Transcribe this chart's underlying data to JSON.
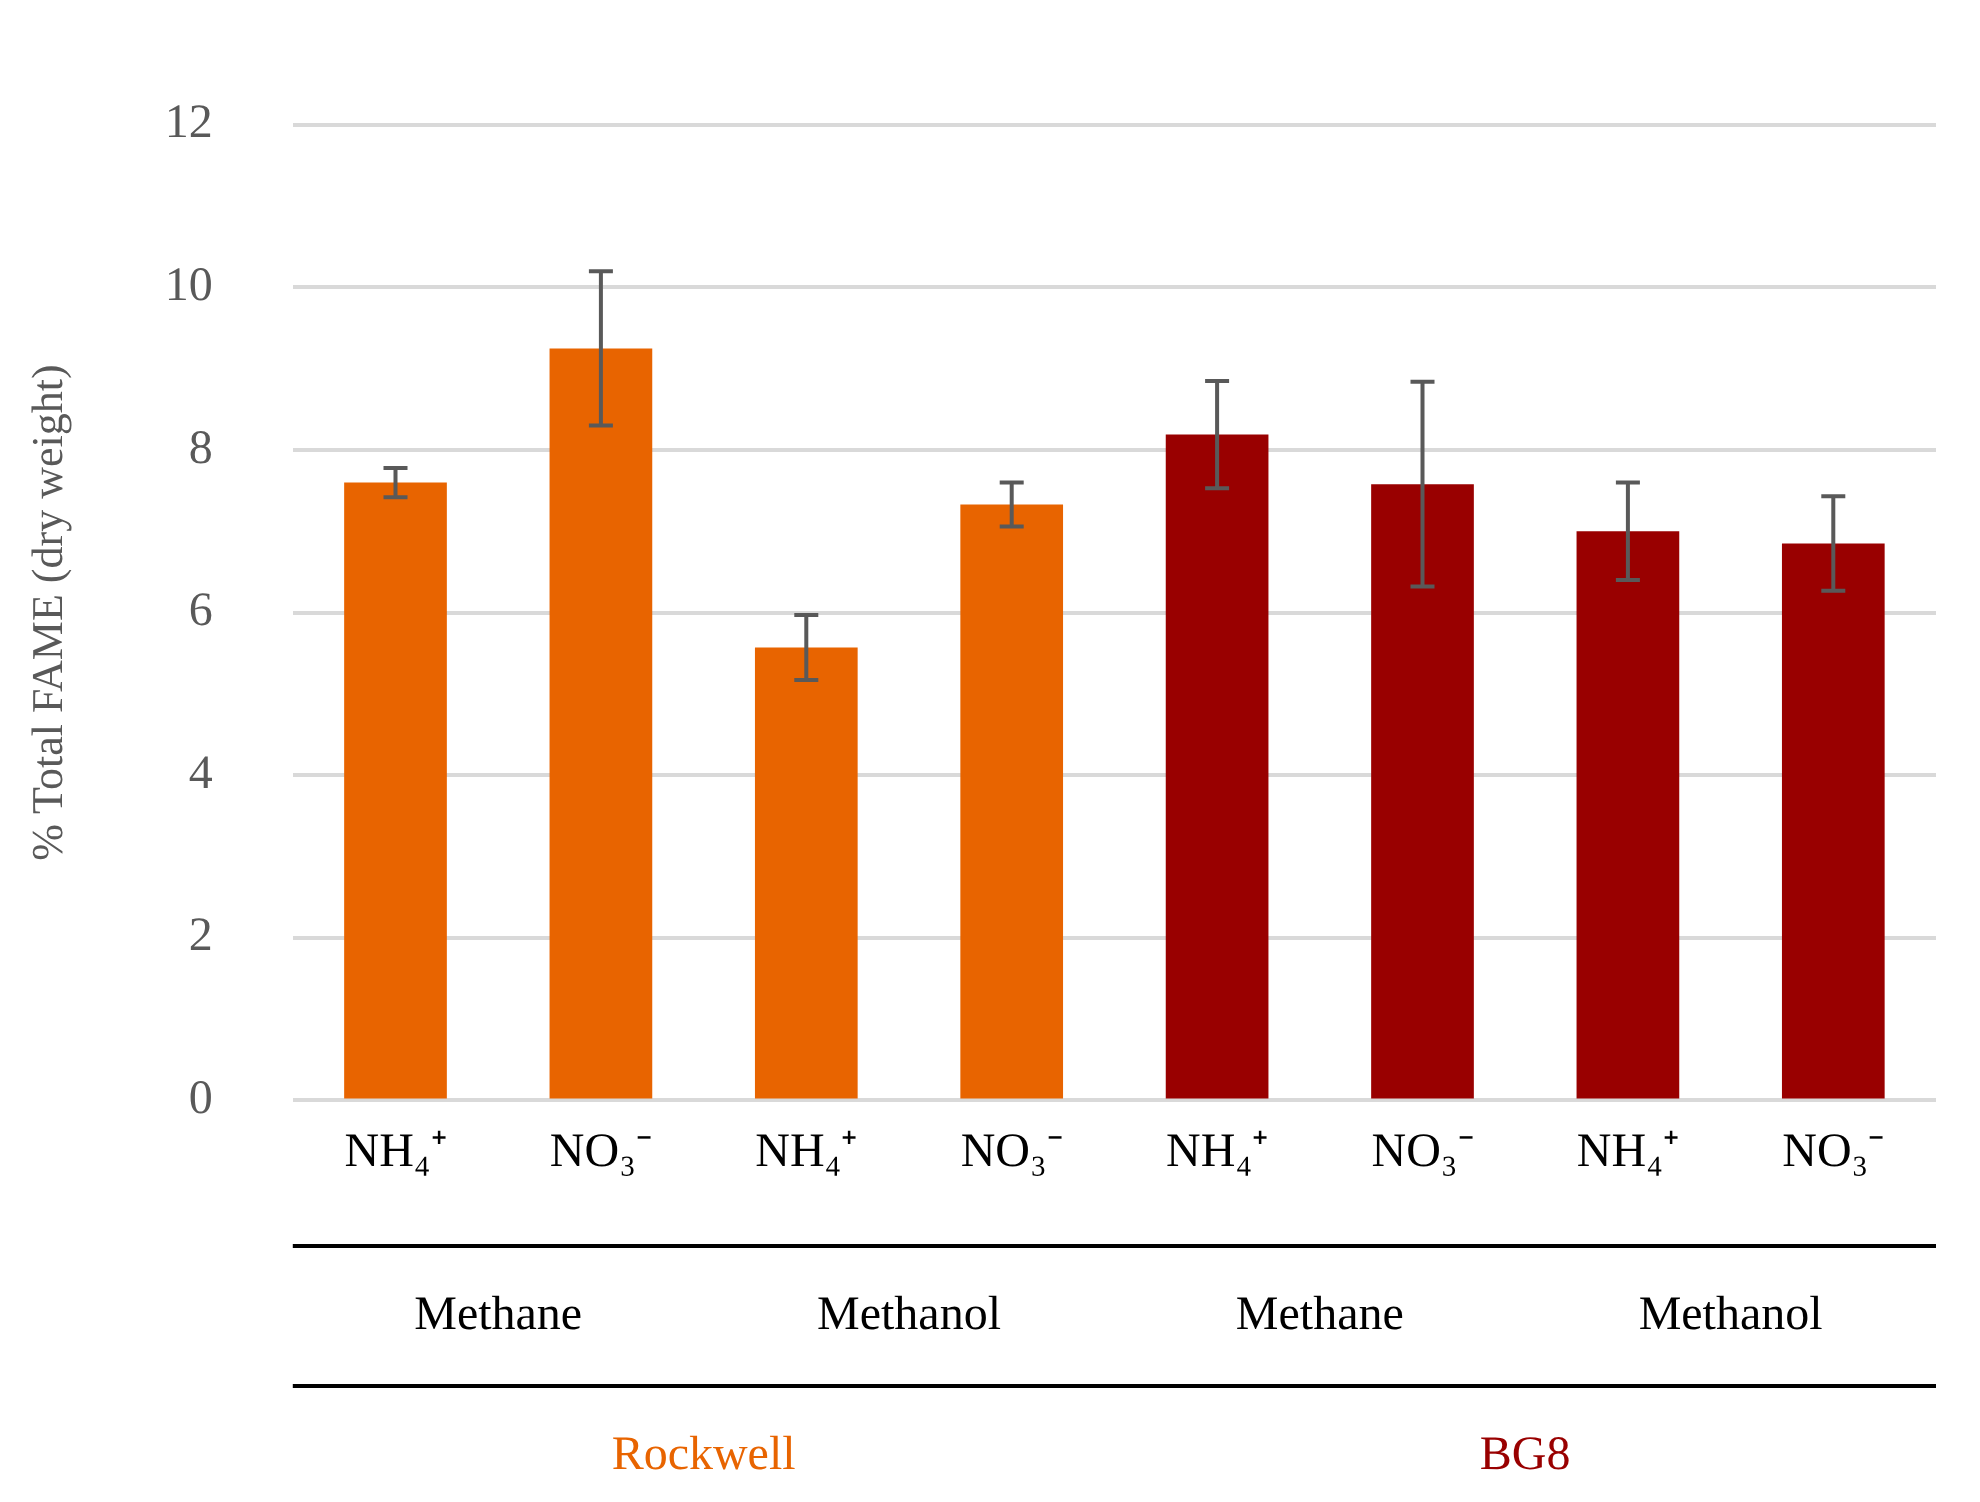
{
  "chart_data": {
    "type": "bar",
    "ylabel": "% Total FAME (dry weight)",
    "categories": [
      "NH₄⁺",
      "NO₃⁻",
      "NH₄⁺",
      "NO₃⁻",
      "NH₄⁺",
      "NO₃⁻",
      "NH₄⁺",
      "NO₃⁻"
    ],
    "series": [
      {
        "name": "Rockwell",
        "color": "#e86400",
        "values": [
          7.6,
          9.25,
          5.57,
          7.33,
          null,
          null,
          null,
          null
        ],
        "errors": [
          0.18,
          0.95,
          0.4,
          0.27,
          null,
          null,
          null,
          null
        ]
      },
      {
        "name": "BG8",
        "color": "#990000",
        "values": [
          null,
          null,
          null,
          null,
          8.19,
          7.58,
          7.0,
          6.85
        ],
        "errors": [
          null,
          null,
          null,
          null,
          0.66,
          1.26,
          0.6,
          0.58
        ]
      }
    ],
    "annotations": [
      "Methane",
      "Methanol",
      "Methane",
      "Methanol"
    ],
    "ylim": [
      0,
      12
    ],
    "yticks": [
      0,
      2,
      4,
      6,
      8,
      10,
      12
    ],
    "grid": "y",
    "legend": false
  }
}
